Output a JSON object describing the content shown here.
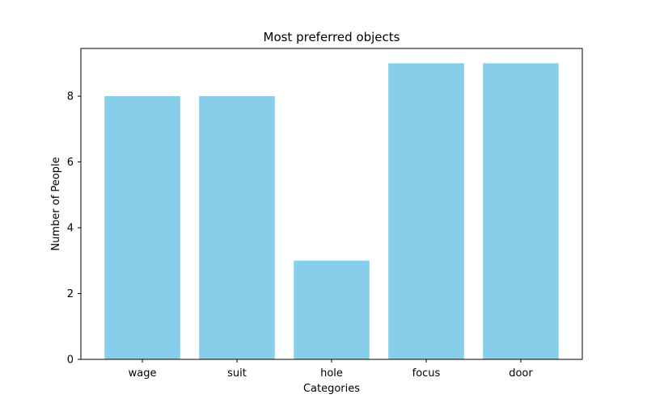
{
  "chart_data": {
    "type": "bar",
    "title": "Most preferred objects",
    "xlabel": "Categories",
    "ylabel": "Number of People",
    "categories": [
      "wage",
      "suit",
      "hole",
      "focus",
      "door"
    ],
    "values": [
      8,
      8,
      3,
      9,
      9
    ],
    "ylim": [
      0,
      9.45
    ],
    "yticks": [
      0,
      2,
      4,
      6,
      8
    ],
    "bar_color": "#87ceeb",
    "grid": false,
    "legend": "none"
  }
}
